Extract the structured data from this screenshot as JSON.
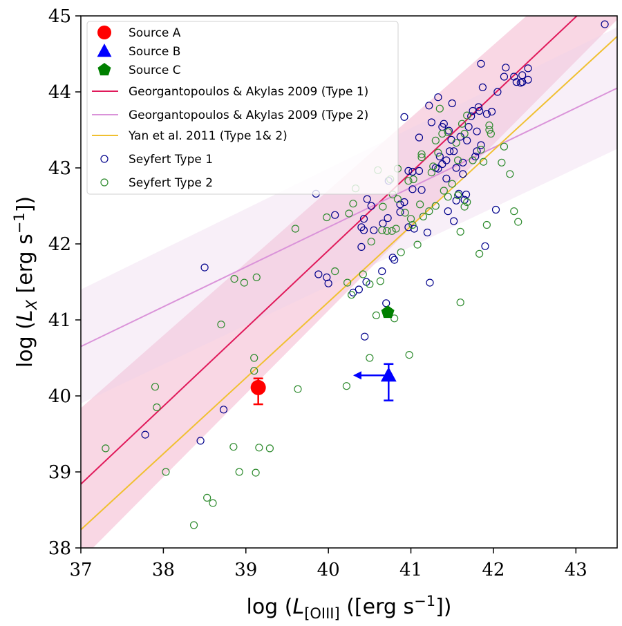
{
  "chart_data": {
    "type": "scatter",
    "xlabel": "log (L[OIII] ([erg s⁻¹])",
    "ylabel": "log (LX [erg s⁻¹])",
    "xlim": [
      37,
      43.5
    ],
    "ylim": [
      38,
      45
    ],
    "xticks": [
      "37",
      "38",
      "39",
      "40",
      "41",
      "42",
      "43"
    ],
    "yticks": [
      "38",
      "39",
      "40",
      "41",
      "42",
      "43",
      "44",
      "45"
    ],
    "legend_position": "top-left",
    "sources": [
      {
        "name": "Source A",
        "marker": "circle",
        "color": "#ff0000",
        "x": 39.15,
        "y": 40.11,
        "yerr": [
          0.22,
          0.12
        ]
      },
      {
        "name": "Source B",
        "marker": "triangle",
        "color": "#0000ff",
        "x": 40.73,
        "y": 40.27,
        "yerr": [
          0.33,
          0.15
        ],
        "xupper_limit_to": 40.3
      },
      {
        "name": "Source C",
        "marker": "pentagon",
        "color": "#008000",
        "x": 40.72,
        "y": 41.1
      }
    ],
    "lines": [
      {
        "name": "Georgantopoulos & Akylas 2009 (Type 1)",
        "color": "#e0195a",
        "x": [
          37,
          43.5
        ],
        "y": [
          38.84,
          45.5
        ],
        "band": [
          1.0,
          0.55
        ],
        "band_color": "#f2a6c4"
      },
      {
        "name": "Georgantopoulos & Akylas 2009 (Type 2)",
        "color": "#da93d9",
        "x": [
          37,
          43.5
        ],
        "y": [
          40.65,
          44.05
        ],
        "band": [
          0.75,
          0.8
        ],
        "band_color": "#ead0ea"
      },
      {
        "name": "Yan et al.  2011 (Type 1& 2)",
        "color": "#f0c030",
        "x": [
          37,
          43.5
        ],
        "y": [
          38.24,
          44.73
        ]
      }
    ],
    "series": [
      {
        "name": "Seyfert Type 1",
        "color": "#00008b",
        "points": [
          [
            37.78,
            39.49
          ],
          [
            38.45,
            39.41
          ],
          [
            38.5,
            41.69
          ],
          [
            38.73,
            39.82
          ],
          [
            39.85,
            42.66
          ],
          [
            39.88,
            41.6
          ],
          [
            39.98,
            41.56
          ],
          [
            40.0,
            41.48
          ],
          [
            40.08,
            42.38
          ],
          [
            40.3,
            41.36
          ],
          [
            40.37,
            41.4
          ],
          [
            40.4,
            41.96
          ],
          [
            40.4,
            42.22
          ],
          [
            40.43,
            42.18
          ],
          [
            40.43,
            42.33
          ],
          [
            40.44,
            40.78
          ],
          [
            40.46,
            41.5
          ],
          [
            40.47,
            42.59
          ],
          [
            40.52,
            42.5
          ],
          [
            40.55,
            42.18
          ],
          [
            40.65,
            41.64
          ],
          [
            40.66,
            42.27
          ],
          [
            40.7,
            41.22
          ],
          [
            40.72,
            42.34
          ],
          [
            40.73,
            42.83
          ],
          [
            40.78,
            41.82
          ],
          [
            40.8,
            41.79
          ],
          [
            40.87,
            42.52
          ],
          [
            40.87,
            42.42
          ],
          [
            40.92,
            42.55
          ],
          [
            40.92,
            43.67
          ],
          [
            40.97,
            42.96
          ],
          [
            40.97,
            42.22
          ],
          [
            41.02,
            42.72
          ],
          [
            41.02,
            42.95
          ],
          [
            41.04,
            42.2
          ],
          [
            41.1,
            43.4
          ],
          [
            41.1,
            42.96
          ],
          [
            41.13,
            42.71
          ],
          [
            41.2,
            42.15
          ],
          [
            41.22,
            43.82
          ],
          [
            41.23,
            41.49
          ],
          [
            41.25,
            43.6
          ],
          [
            41.33,
            43.93
          ],
          [
            41.33,
            42.99
          ],
          [
            41.35,
            43.15
          ],
          [
            41.38,
            43.05
          ],
          [
            41.38,
            43.54
          ],
          [
            41.4,
            43.58
          ],
          [
            41.43,
            43.1
          ],
          [
            41.43,
            42.86
          ],
          [
            41.45,
            42.43
          ],
          [
            41.46,
            43.49
          ],
          [
            41.47,
            43.22
          ],
          [
            41.49,
            43.37
          ],
          [
            41.5,
            43.85
          ],
          [
            41.52,
            42.3
          ],
          [
            41.52,
            43.22
          ],
          [
            41.55,
            42.57
          ],
          [
            41.58,
            42.66
          ],
          [
            41.6,
            43.41
          ],
          [
            41.63,
            43.07
          ],
          [
            41.63,
            42.92
          ],
          [
            41.67,
            42.65
          ],
          [
            41.68,
            43.36
          ],
          [
            41.7,
            43.54
          ],
          [
            41.73,
            43.68
          ],
          [
            41.75,
            43.75
          ],
          [
            41.78,
            43.15
          ],
          [
            41.8,
            43.48
          ],
          [
            41.8,
            43.22
          ],
          [
            41.82,
            43.8
          ],
          [
            41.83,
            43.75
          ],
          [
            41.85,
            43.3
          ],
          [
            41.85,
            44.37
          ],
          [
            41.87,
            44.06
          ],
          [
            41.9,
            41.97
          ],
          [
            41.92,
            43.71
          ],
          [
            41.98,
            43.74
          ],
          [
            42.03,
            42.45
          ],
          [
            42.05,
            44.0
          ],
          [
            42.13,
            44.2
          ],
          [
            42.15,
            44.32
          ],
          [
            42.25,
            44.2
          ],
          [
            42.28,
            44.13
          ],
          [
            42.33,
            44.12
          ],
          [
            42.35,
            44.22
          ],
          [
            42.35,
            44.13
          ],
          [
            42.42,
            44.31
          ],
          [
            42.42,
            44.16
          ],
          [
            43.35,
            44.89
          ],
          [
            41.3,
            43.0
          ],
          [
            41.55,
            43.0
          ],
          [
            41.65,
            42.58
          ]
        ]
      },
      {
        "name": "Seyfert Type 2",
        "color": "#2e8b2e",
        "points": [
          [
            37.3,
            39.31
          ],
          [
            37.9,
            40.12
          ],
          [
            37.92,
            39.85
          ],
          [
            38.03,
            39.0
          ],
          [
            38.37,
            38.3
          ],
          [
            38.53,
            38.66
          ],
          [
            38.6,
            38.59
          ],
          [
            38.7,
            40.94
          ],
          [
            38.85,
            39.33
          ],
          [
            38.86,
            41.54
          ],
          [
            38.92,
            39.0
          ],
          [
            38.98,
            41.49
          ],
          [
            39.1,
            40.5
          ],
          [
            39.1,
            40.33
          ],
          [
            39.12,
            38.99
          ],
          [
            39.13,
            41.56
          ],
          [
            39.16,
            39.32
          ],
          [
            39.29,
            39.31
          ],
          [
            39.6,
            42.2
          ],
          [
            39.63,
            40.09
          ],
          [
            39.98,
            42.35
          ],
          [
            40.08,
            41.64
          ],
          [
            40.22,
            40.13
          ],
          [
            40.23,
            41.49
          ],
          [
            40.25,
            42.4
          ],
          [
            40.28,
            41.33
          ],
          [
            40.3,
            42.53
          ],
          [
            40.33,
            42.73
          ],
          [
            40.42,
            41.6
          ],
          [
            40.5,
            40.5
          ],
          [
            40.5,
            41.47
          ],
          [
            40.52,
            42.03
          ],
          [
            40.58,
            41.06
          ],
          [
            40.6,
            42.97
          ],
          [
            40.63,
            41.51
          ],
          [
            40.65,
            42.18
          ],
          [
            40.66,
            42.49
          ],
          [
            40.71,
            42.17
          ],
          [
            40.75,
            42.85
          ],
          [
            40.77,
            42.17
          ],
          [
            40.8,
            41.02
          ],
          [
            40.82,
            42.2
          ],
          [
            40.84,
            42.59
          ],
          [
            40.84,
            42.99
          ],
          [
            40.88,
            41.89
          ],
          [
            40.93,
            42.41
          ],
          [
            40.97,
            42.83
          ],
          [
            40.98,
            40.54
          ],
          [
            41.0,
            42.33
          ],
          [
            41.02,
            42.25
          ],
          [
            41.03,
            42.85
          ],
          [
            41.08,
            41.99
          ],
          [
            41.11,
            42.52
          ],
          [
            41.13,
            43.14
          ],
          [
            41.13,
            43.18
          ],
          [
            41.15,
            42.36
          ],
          [
            41.22,
            42.43
          ],
          [
            41.25,
            42.94
          ],
          [
            41.27,
            43.02
          ],
          [
            41.3,
            43.36
          ],
          [
            41.33,
            43.2
          ],
          [
            41.35,
            43.78
          ],
          [
            41.38,
            43.45
          ],
          [
            41.4,
            42.7
          ],
          [
            41.45,
            42.62
          ],
          [
            41.45,
            43.47
          ],
          [
            41.5,
            42.79
          ],
          [
            41.55,
            43.33
          ],
          [
            41.57,
            43.1
          ],
          [
            41.57,
            42.64
          ],
          [
            41.6,
            41.23
          ],
          [
            41.6,
            42.16
          ],
          [
            41.62,
            43.58
          ],
          [
            41.65,
            43.45
          ],
          [
            41.65,
            42.49
          ],
          [
            41.68,
            42.55
          ],
          [
            41.68,
            43.69
          ],
          [
            41.75,
            43.1
          ],
          [
            41.83,
            41.87
          ],
          [
            41.85,
            43.24
          ],
          [
            41.88,
            43.08
          ],
          [
            41.92,
            42.25
          ],
          [
            41.95,
            43.5
          ],
          [
            41.95,
            43.56
          ],
          [
            41.97,
            43.45
          ],
          [
            42.1,
            43.07
          ],
          [
            42.13,
            43.28
          ],
          [
            42.2,
            42.92
          ],
          [
            42.25,
            42.43
          ],
          [
            42.3,
            42.29
          ],
          [
            41.3,
            42.5
          ],
          [
            40.78,
            42.65
          ]
        ]
      }
    ]
  }
}
